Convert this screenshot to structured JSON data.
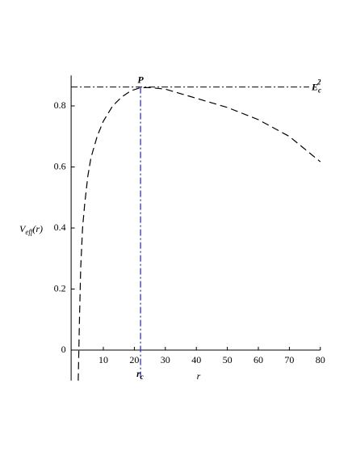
{
  "chart_data": {
    "type": "line",
    "x_label": "r",
    "y_label": {
      "main": "V",
      "sub": "eff",
      "suffix": "(r)"
    },
    "x": [
      1.9,
      2.3,
      2.7,
      3.3,
      4,
      5,
      6,
      8,
      10,
      13,
      16,
      19,
      22,
      25,
      30,
      35,
      40,
      50,
      60,
      70,
      80
    ],
    "series": [
      {
        "color": "#000000",
        "values": [
          -0.1,
          0.1,
          0.27,
          0.4,
          0.48,
          0.57,
          0.63,
          0.7,
          0.75,
          0.8,
          0.83,
          0.85,
          0.86,
          0.86,
          0.855,
          0.84,
          0.825,
          0.795,
          0.755,
          0.7,
          0.617
        ]
      }
    ],
    "xlim": [
      0,
      80
    ],
    "ylim": [
      -0.1,
      0.9
    ],
    "xticks": [
      10,
      20,
      30,
      40,
      50,
      60,
      70,
      80
    ],
    "yticks": [
      0,
      0.2,
      0.4,
      0.6,
      0.8
    ],
    "critical_r": {
      "value": 22,
      "color": "#3333cc",
      "label": {
        "main": "r",
        "sub": "c"
      }
    },
    "critical_energy": {
      "value": 0.862,
      "color": "#000000",
      "label": {
        "main": "E",
        "sub": "c",
        "sup": "2"
      }
    },
    "point_label": "P"
  }
}
